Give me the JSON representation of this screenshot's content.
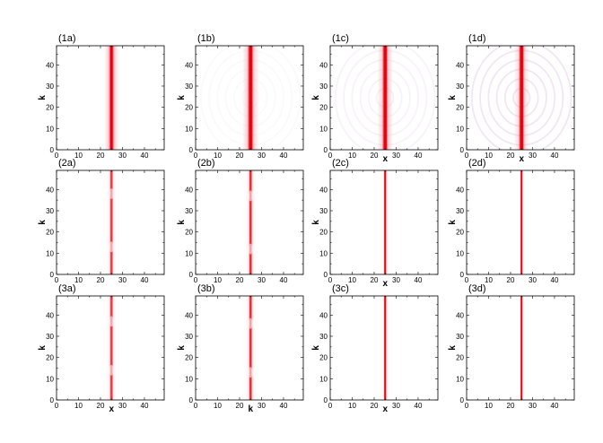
{
  "chart_data": [
    {
      "label": "(1a)",
      "type": "heatmap",
      "xlabel": "",
      "ylabel": "k",
      "xlim": [
        0,
        49
      ],
      "ylim": [
        0,
        49
      ],
      "xticks": [
        "0",
        "10",
        "20",
        "30",
        "40"
      ],
      "yticks": [
        "0",
        "10",
        "20",
        "30",
        "40"
      ],
      "peak_x": 25,
      "width": 0.55,
      "intensity": 1.0,
      "halo": 0.55,
      "ring_strength": 0.0,
      "notch_k": [],
      "line_color": "#e0282a",
      "line_tint": "#6a3cc8"
    },
    {
      "label": "(1b)",
      "type": "heatmap",
      "xlabel": "",
      "ylabel": "k",
      "xlim": [
        0,
        49
      ],
      "ylim": [
        0,
        49
      ],
      "xticks": [
        "0",
        "10",
        "20",
        "30",
        "40"
      ],
      "yticks": [
        "0",
        "10",
        "20",
        "30",
        "40"
      ],
      "peak_x": 25,
      "width": 0.9,
      "intensity": 1.0,
      "halo": 0.5,
      "ring_strength": 0.15,
      "notch_k": [],
      "line_color": "#e0282a",
      "line_tint": "#6a3cc8"
    },
    {
      "label": "(1c)",
      "type": "heatmap",
      "xlabel": "x",
      "ylabel": "k",
      "xlim": [
        0,
        49
      ],
      "ylim": [
        0,
        49
      ],
      "xticks": [
        "0",
        "10",
        "20",
        "30",
        "40"
      ],
      "yticks": [
        "0",
        "10",
        "20",
        "30",
        "40"
      ],
      "peak_x": 25,
      "width": 0.9,
      "intensity": 1.0,
      "halo": 0.45,
      "ring_strength": 0.3,
      "notch_k": [],
      "line_color": "#e0282a",
      "line_tint": "#6a3cc8"
    },
    {
      "label": "(1d)",
      "type": "heatmap",
      "xlabel": "x",
      "ylabel": "k",
      "xlim": [
        0,
        49
      ],
      "ylim": [
        0,
        49
      ],
      "xticks": [
        "0",
        "10",
        "20",
        "30",
        "40"
      ],
      "yticks": [
        "0",
        "10",
        "20",
        "30",
        "40"
      ],
      "peak_x": 25,
      "width": 0.9,
      "intensity": 1.0,
      "halo": 0.4,
      "ring_strength": 0.6,
      "notch_k": [],
      "line_color": "#e0282a",
      "line_tint": "#6a3cc8"
    },
    {
      "label": "(2a)",
      "type": "heatmap",
      "xlabel": "",
      "ylabel": "k",
      "xlim": [
        0,
        49
      ],
      "ylim": [
        0,
        49
      ],
      "xticks": [
        "0",
        "10",
        "20",
        "30",
        "40"
      ],
      "yticks": [
        "0",
        "10",
        "20",
        "30",
        "40"
      ],
      "peak_x": 25,
      "width": 0.5,
      "intensity": 0.55,
      "halo": 0.3,
      "ring_strength": 0.0,
      "notch_k": [
        13,
        38
      ],
      "line_color": "#e0282a",
      "line_tint": "#e0282a"
    },
    {
      "label": "(2b)",
      "type": "heatmap",
      "xlabel": "",
      "ylabel": "k",
      "xlim": [
        0,
        49
      ],
      "ylim": [
        0,
        49
      ],
      "xticks": [
        "0",
        "10",
        "20",
        "30",
        "40"
      ],
      "yticks": [
        "0",
        "10",
        "20",
        "30",
        "40"
      ],
      "peak_x": 25,
      "width": 0.5,
      "intensity": 0.6,
      "halo": 0.3,
      "ring_strength": 0.0,
      "notch_k": [
        12,
        37
      ],
      "line_color": "#e0282a",
      "line_tint": "#e0282a"
    },
    {
      "label": "(2c)",
      "type": "heatmap",
      "xlabel": "x",
      "ylabel": "k",
      "xlim": [
        0,
        49
      ],
      "ylim": [
        0,
        49
      ],
      "xticks": [
        "0",
        "10",
        "20",
        "30",
        "40"
      ],
      "yticks": [
        "0",
        "10",
        "20",
        "30",
        "40"
      ],
      "peak_x": 25,
      "width": 0.35,
      "intensity": 0.85,
      "halo": 0.15,
      "ring_strength": 0.0,
      "notch_k": [],
      "line_color": "#e0282a",
      "line_tint": "#e0282a"
    },
    {
      "label": "(2d)",
      "type": "heatmap",
      "xlabel": "",
      "ylabel": "k",
      "xlim": [
        0,
        49
      ],
      "ylim": [
        0,
        49
      ],
      "xticks": [
        "0",
        "10",
        "20",
        "30",
        "40"
      ],
      "yticks": [
        "0",
        "10",
        "20",
        "30",
        "40"
      ],
      "peak_x": 25,
      "width": 0.3,
      "intensity": 0.9,
      "halo": 0.1,
      "ring_strength": 0.0,
      "notch_k": [],
      "line_color": "#e0282a",
      "line_tint": "#e0282a"
    },
    {
      "label": "(3a)",
      "type": "heatmap",
      "xlabel": "x",
      "ylabel": "k",
      "xlim": [
        0,
        49
      ],
      "ylim": [
        0,
        49
      ],
      "xticks": [
        "0",
        "10",
        "20",
        "30",
        "40"
      ],
      "yticks": [
        "0",
        "10",
        "20",
        "30",
        "40"
      ],
      "peak_x": 25,
      "width": 0.5,
      "intensity": 0.55,
      "halo": 0.3,
      "ring_strength": 0.0,
      "notch_k": [
        14,
        37
      ],
      "line_color": "#e0282a",
      "line_tint": "#e0282a"
    },
    {
      "label": "(3b)",
      "type": "heatmap",
      "xlabel": "k",
      "ylabel": "k",
      "xlim": [
        0,
        49
      ],
      "ylim": [
        0,
        49
      ],
      "xticks": [
        "0",
        "10",
        "20",
        "30",
        "40"
      ],
      "yticks": [
        "0",
        "10",
        "20",
        "30",
        "40"
      ],
      "peak_x": 25,
      "width": 0.5,
      "intensity": 0.6,
      "halo": 0.3,
      "ring_strength": 0.0,
      "notch_k": [
        13,
        36
      ],
      "line_color": "#e0282a",
      "line_tint": "#e0282a"
    },
    {
      "label": "(3c)",
      "type": "heatmap",
      "xlabel": "x",
      "ylabel": "k",
      "xlim": [
        0,
        49
      ],
      "ylim": [
        0,
        49
      ],
      "xticks": [
        "0",
        "10",
        "20",
        "30",
        "40"
      ],
      "yticks": [
        "0",
        "10",
        "20",
        "30",
        "40"
      ],
      "peak_x": 25,
      "width": 0.35,
      "intensity": 0.85,
      "halo": 0.15,
      "ring_strength": 0.0,
      "notch_k": [],
      "line_color": "#e0282a",
      "line_tint": "#e0282a"
    },
    {
      "label": "(3d)",
      "type": "heatmap",
      "xlabel": "",
      "ylabel": "k",
      "xlim": [
        0,
        49
      ],
      "ylim": [
        0,
        49
      ],
      "xticks": [
        "0",
        "10",
        "20",
        "30",
        "40"
      ],
      "yticks": [
        "0",
        "10",
        "20",
        "30",
        "40"
      ],
      "peak_x": 25,
      "width": 0.3,
      "intensity": 0.9,
      "halo": 0.1,
      "ring_strength": 0.0,
      "notch_k": [],
      "line_color": "#e0282a",
      "line_tint": "#e0282a"
    }
  ]
}
